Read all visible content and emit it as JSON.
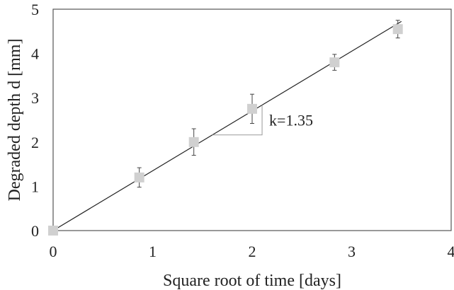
{
  "chart_data": {
    "type": "scatter",
    "xlabel": "Square root of time [days]",
    "ylabel": "Degraded depth d [mm]",
    "xlim": [
      0,
      4
    ],
    "ylim": [
      0,
      5
    ],
    "x_ticks": [
      "0",
      "1",
      "2",
      "3",
      "4"
    ],
    "y_ticks": [
      "0",
      "1",
      "2",
      "3",
      "4",
      "5"
    ],
    "grid": false,
    "legend": "none",
    "series": [
      {
        "marker": "square",
        "color": "#d0d0d0",
        "x": [
          0,
          0.866,
          1.414,
          2.0,
          2.828,
          3.464
        ],
        "y": [
          0,
          1.2,
          2.0,
          2.75,
          3.8,
          4.55
        ],
        "error": [
          0,
          0.22,
          0.3,
          0.33,
          0.18,
          0.2
        ]
      }
    ],
    "fit_line": {
      "slope": 1.35,
      "intercept": 0,
      "x_range": [
        0,
        3.5
      ],
      "color": "#222222"
    },
    "annotation": {
      "text": "k=1.35",
      "slope_triangle": {
        "x0": 1.6,
        "x1": 2.1
      }
    }
  }
}
